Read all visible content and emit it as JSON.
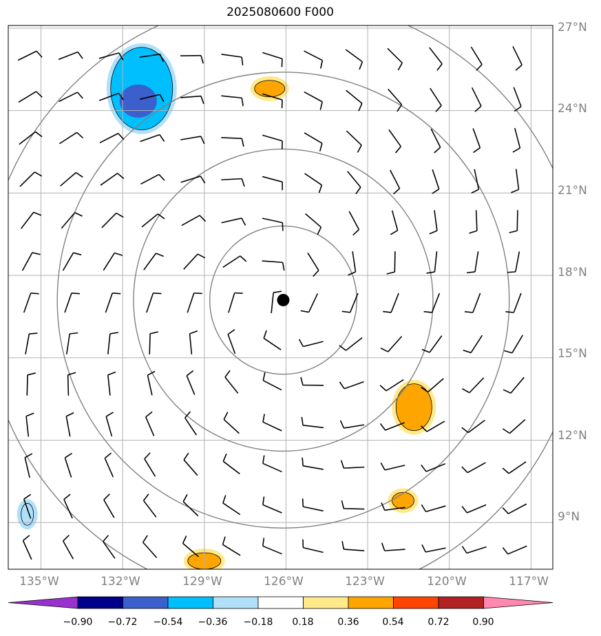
{
  "title": "2025080600 F000",
  "map": {
    "lat_labels": [
      "27°N",
      "24°N",
      "21°N",
      "18°N",
      "15°N",
      "12°N",
      "9°N"
    ],
    "lon_labels": [
      "135°W",
      "132°W",
      "129°W",
      "126°W",
      "123°W",
      "120°W",
      "117°W"
    ],
    "lat_range": [
      7.3,
      27.1
    ],
    "lon_range": [
      -136.2,
      -116.2
    ],
    "center": {
      "lon": -126.1,
      "lat": 17.1
    },
    "range_rings_deg": [
      2.7,
      5.5,
      8.3,
      11.0
    ],
    "gridlines": true
  },
  "colorbar": {
    "ticks": [
      "−0.90",
      "−0.72",
      "−0.54",
      "−0.36",
      "−0.18",
      "0.18",
      "0.36",
      "0.54",
      "0.72",
      "0.90"
    ],
    "colors": [
      "#9932cc",
      "#00008b",
      "#3b5fcd",
      "#00bfff",
      "#b0e0fa",
      "#ffffff",
      "#ffe98a",
      "#ffa500",
      "#ff4500",
      "#b22222",
      "#ff88b0"
    ],
    "extend": "both"
  },
  "contours": [
    {
      "name": "negative-anomaly-nw",
      "color": "#00bfff",
      "lon": -131.3,
      "lat": 24.8,
      "rx": 45,
      "ry": 60,
      "inner": "#3b5fcd"
    },
    {
      "name": "positive-anomaly-n",
      "color": "#ffa500",
      "lon": -126.6,
      "lat": 24.8,
      "rx": 22,
      "ry": 12,
      "inner": null
    },
    {
      "name": "positive-anomaly-se",
      "color": "#ffa500",
      "lon": -121.3,
      "lat": 13.2,
      "rx": 26,
      "ry": 34,
      "inner": null
    },
    {
      "name": "positive-anomaly-s1",
      "color": "#ffa500",
      "lon": -121.7,
      "lat": 9.8,
      "rx": 16,
      "ry": 12,
      "inner": null
    },
    {
      "name": "positive-anomaly-s2",
      "color": "#ffa500",
      "lon": -129.0,
      "lat": 7.6,
      "rx": 24,
      "ry": 12,
      "inner": null
    },
    {
      "name": "negative-anomaly-w",
      "color": "#b0e0fa",
      "lon": -135.5,
      "lat": 9.3,
      "rx": 9,
      "ry": 16,
      "inner": null
    }
  ]
}
